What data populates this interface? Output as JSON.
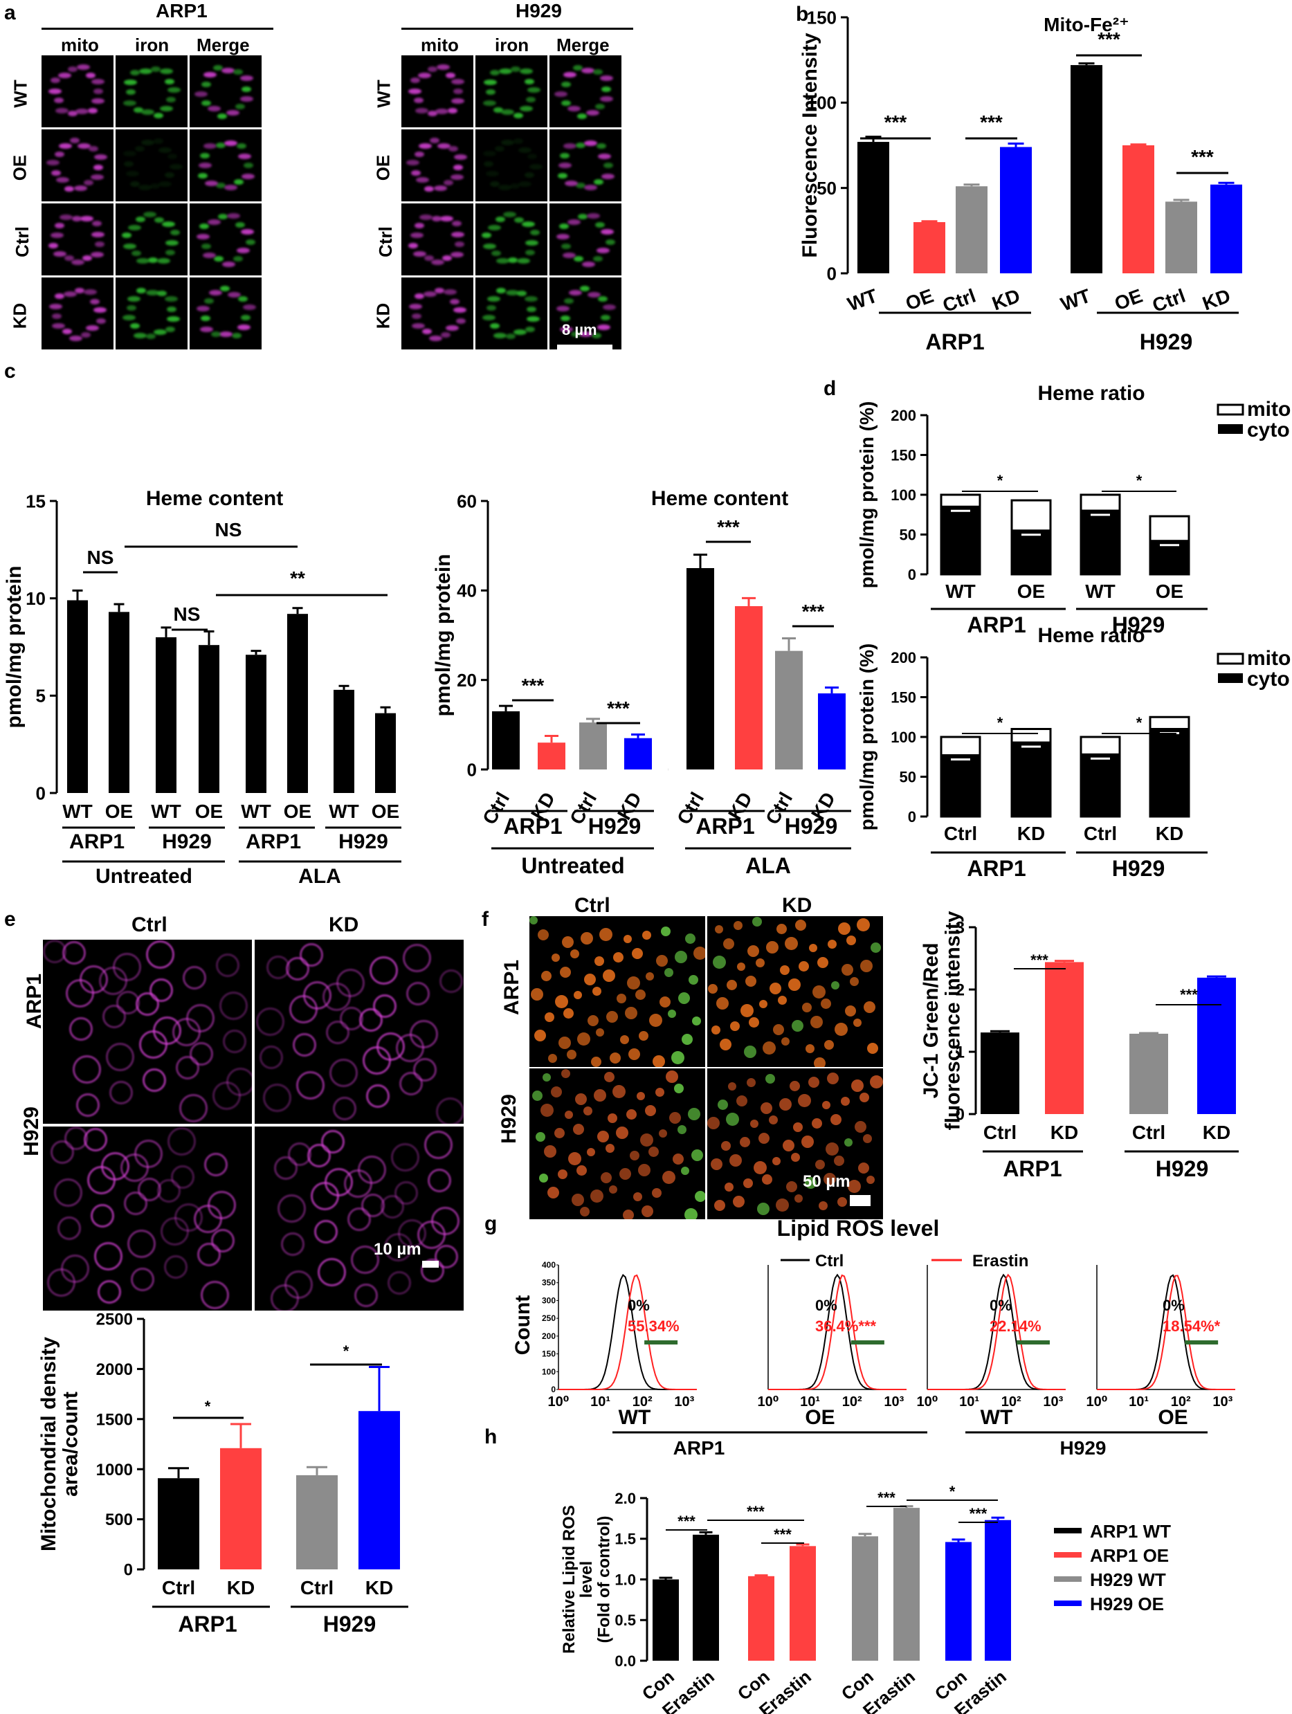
{
  "panels": {
    "a": {
      "label": "a",
      "groups": [
        "ARP1",
        "H929"
      ],
      "columns": [
        "mito",
        "iron",
        "Merge"
      ],
      "rows": [
        "WT",
        "OE",
        "Ctrl",
        "KD"
      ],
      "scale_bar": "8 µm"
    },
    "b": {
      "label": "b"
    },
    "c": {
      "label": "c"
    },
    "d": {
      "label": "d"
    },
    "e": {
      "label": "e",
      "columns": [
        "Ctrl",
        "KD"
      ],
      "rows": [
        "ARP1",
        "H929"
      ],
      "scale_bar": "10 µm"
    },
    "f": {
      "label": "f",
      "columns": [
        "Ctrl",
        "KD"
      ],
      "rows": [
        "ARP1",
        "H929"
      ],
      "scale_bar": "50 µm"
    },
    "g": {
      "label": "g"
    },
    "h": {
      "label": "h"
    }
  },
  "colors": {
    "black": "#000000",
    "red": "#ff4040",
    "gray": "#8c8c8c",
    "blue": "#0000ff",
    "mito": "#d040d0",
    "iron": "#30c030",
    "darkgreen": "#2e6b2e"
  },
  "chart_data": [
    {
      "id": "b",
      "type": "bar",
      "title": "Mito-Fe²⁺",
      "ylabel": "Fluorescence Intensity",
      "ylim": [
        0,
        150
      ],
      "yticks": [
        0,
        50,
        100,
        150
      ],
      "categories": [
        "WT",
        "OE",
        "Ctrl",
        "KD",
        "WT",
        "OE",
        "Ctrl",
        "KD"
      ],
      "groups": [
        "ARP1",
        "H929"
      ],
      "values": [
        77,
        30,
        51,
        74,
        122,
        75,
        42,
        52
      ],
      "errors": [
        3,
        0.5,
        1,
        2,
        1,
        0.5,
        1,
        1
      ],
      "colors": [
        "black",
        "red",
        "gray",
        "blue",
        "black",
        "red",
        "gray",
        "blue"
      ],
      "significance": [
        "***",
        "***",
        "***",
        "***"
      ]
    },
    {
      "id": "c1",
      "type": "bar",
      "title": "Heme content",
      "ylabel": "pmol/mg protein",
      "ylim": [
        0,
        15
      ],
      "yticks": [
        0,
        5,
        10,
        15
      ],
      "categories": [
        "WT",
        "OE",
        "WT",
        "OE",
        "WT",
        "OE",
        "WT",
        "OE"
      ],
      "groups": [
        "ARP1",
        "H929",
        "ARP1",
        "H929"
      ],
      "treatments": [
        "Untreated",
        "ALA"
      ],
      "values": [
        9.9,
        9.3,
        8.0,
        7.6,
        7.1,
        9.2,
        5.3,
        4.1
      ],
      "errors": [
        0.5,
        0.4,
        0.5,
        0.7,
        0.2,
        0.3,
        0.2,
        0.3
      ],
      "colors": [
        "black",
        "black",
        "black",
        "black",
        "black",
        "black",
        "black",
        "black"
      ],
      "significance": [
        "NS",
        "NS",
        "NS",
        "**"
      ]
    },
    {
      "id": "c2",
      "type": "bar",
      "title": "Heme content",
      "ylabel": "pmol/mg protein",
      "ylim": [
        0,
        60
      ],
      "yticks": [
        0,
        20,
        40,
        60
      ],
      "categories": [
        "Ctrl",
        "KD",
        "Ctrl",
        "KD",
        "Ctrl",
        "KD",
        "Ctrl",
        "KD"
      ],
      "groups": [
        "ARP1",
        "H929",
        "ARP1",
        "H929"
      ],
      "treatments": [
        "Untreated",
        "ALA"
      ],
      "values": [
        13,
        6,
        10.5,
        7,
        45,
        36.5,
        26.5,
        17
      ],
      "errors": [
        1.2,
        1.5,
        0.8,
        0.8,
        3,
        1.8,
        2.8,
        1.3
      ],
      "colors": [
        "black",
        "red",
        "gray",
        "blue",
        "black",
        "red",
        "gray",
        "blue"
      ],
      "significance": [
        "***",
        "***",
        "***",
        "***"
      ]
    },
    {
      "id": "d1",
      "type": "bar",
      "title": "Heme ratio",
      "ylabel": "pmol/mg protein (%)",
      "ylim": [
        0,
        200
      ],
      "yticks": [
        0,
        50,
        100,
        150,
        200
      ],
      "categories": [
        "WT",
        "OE",
        "WT",
        "OE"
      ],
      "groups": [
        "ARP1",
        "H929"
      ],
      "legend": [
        "mito",
        "cyto"
      ],
      "series": [
        {
          "name": "cyto",
          "values": [
            85,
            55,
            80,
            42
          ]
        },
        {
          "name": "mito",
          "values": [
            15,
            38,
            20,
            31
          ]
        }
      ],
      "significance": [
        "*",
        "*"
      ]
    },
    {
      "id": "d2",
      "type": "bar",
      "title": "Heme ratio",
      "ylabel": "pmol/mg protein (%)",
      "ylim": [
        0,
        200
      ],
      "yticks": [
        0,
        50,
        100,
        150,
        200
      ],
      "categories": [
        "Ctrl",
        "KD",
        "Ctrl",
        "KD"
      ],
      "groups": [
        "ARP1",
        "H929"
      ],
      "legend": [
        "mito",
        "cyto"
      ],
      "series": [
        {
          "name": "cyto",
          "values": [
            77,
            93,
            78,
            110
          ]
        },
        {
          "name": "mito",
          "values": [
            23,
            17,
            22,
            15
          ]
        }
      ],
      "significance": [
        "*",
        "*"
      ]
    },
    {
      "id": "e",
      "type": "bar",
      "ylabel": "Mitochondrial density area/count",
      "ylim": [
        0,
        2500
      ],
      "yticks": [
        0,
        500,
        1000,
        1500,
        2000,
        2500
      ],
      "categories": [
        "Ctrl",
        "KD",
        "Ctrl",
        "KD"
      ],
      "groups": [
        "ARP1",
        "H929"
      ],
      "values": [
        910,
        1210,
        940,
        1580
      ],
      "errors": [
        100,
        240,
        80,
        440
      ],
      "colors": [
        "black",
        "red",
        "gray",
        "blue"
      ],
      "significance": [
        "*",
        "*"
      ]
    },
    {
      "id": "f",
      "type": "bar",
      "ylabel": "JC-1 Green/Red fluorescence intensity",
      "ylim": [
        0,
        3
      ],
      "yticks": [
        0,
        1,
        2,
        3
      ],
      "categories": [
        "Ctrl",
        "KD",
        "Ctrl",
        "KD"
      ],
      "groups": [
        "ARP1",
        "H929"
      ],
      "values": [
        1.31,
        2.44,
        1.29,
        2.19
      ],
      "errors": [
        0.02,
        0.02,
        0.01,
        0.02
      ],
      "colors": [
        "black",
        "red",
        "gray",
        "blue"
      ],
      "significance": [
        "***",
        "***"
      ]
    },
    {
      "id": "g",
      "type": "line",
      "title": "Lipid ROS level",
      "ylabel": "Count",
      "legend": [
        "Ctrl",
        "Erastin"
      ],
      "xticks": [
        "10⁰",
        "10¹",
        "10²",
        "10³"
      ],
      "yticks": [
        "0",
        "100",
        "150",
        "200",
        "250",
        "300",
        "350",
        "400"
      ],
      "subplots": [
        {
          "label": "WT",
          "ctrl_pct": "0%",
          "erastin_pct": "55.34%",
          "ctrl_peak": 1.55,
          "erastin_peak": 1.85
        },
        {
          "label": "OE",
          "ctrl_pct": "0%",
          "erastin_pct": "36.4%***",
          "ctrl_peak": 1.65,
          "erastin_peak": 1.78
        },
        {
          "label": "WT",
          "ctrl_pct": "0%",
          "erastin_pct": "22.14%",
          "ctrl_peak": 1.82,
          "erastin_peak": 1.93
        },
        {
          "label": "OE",
          "ctrl_pct": "0%",
          "erastin_pct": "18.54%*",
          "ctrl_peak": 1.8,
          "erastin_peak": 1.9
        }
      ],
      "groups": [
        "ARP1",
        "H929"
      ]
    },
    {
      "id": "h",
      "type": "bar",
      "ylabel": "Relative Lipid ROS level (Fold of control)",
      "ylim": [
        0,
        2.0
      ],
      "yticks": [
        "0.0",
        "0.5",
        "1.0",
        "1.5",
        "2.0"
      ],
      "categories": [
        "Con",
        "Erastin",
        "Con",
        "Erastin",
        "Con",
        "Erastin",
        "Con",
        "Erastin"
      ],
      "values": [
        1.0,
        1.55,
        1.04,
        1.41,
        1.53,
        1.88,
        1.46,
        1.73
      ],
      "errors": [
        0.02,
        0.03,
        0.01,
        0.02,
        0.03,
        0.02,
        0.03,
        0.03
      ],
      "colors": [
        "black",
        "black",
        "red",
        "red",
        "gray",
        "gray",
        "blue",
        "blue"
      ],
      "legend": [
        "ARP1 WT",
        "ARP1 OE",
        "H929 WT",
        "H929 OE"
      ],
      "significance": [
        "***",
        "***",
        "***",
        "***",
        "***",
        "*"
      ]
    }
  ]
}
